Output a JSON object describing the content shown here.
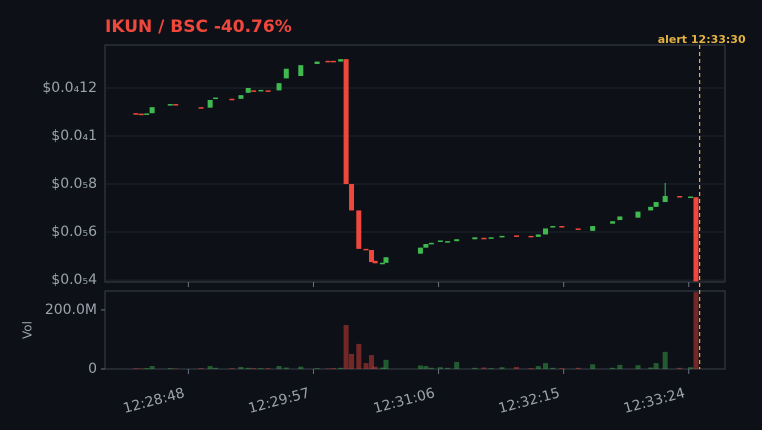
{
  "chart_data": {
    "type": "candlestick",
    "title": "IKUN / BSC  -40.76%",
    "up_color": "#3fb950",
    "down_color": "#f0473c",
    "x": [
      "12:28:19",
      "12:28:22",
      "12:28:25",
      "12:28:28",
      "12:28:38",
      "12:28:41",
      "12:28:55",
      "12:29:00",
      "12:29:03",
      "12:29:12",
      "12:29:17",
      "12:29:21",
      "12:29:24",
      "12:29:28",
      "12:29:32",
      "12:29:38",
      "12:29:42",
      "12:29:50",
      "12:29:59",
      "12:30:05",
      "12:30:08",
      "12:30:12",
      "12:30:15",
      "12:30:18",
      "12:30:22",
      "12:30:26",
      "12:30:29",
      "12:30:31",
      "12:30:35",
      "12:30:37",
      "12:30:56",
      "12:30:59",
      "12:31:02",
      "12:31:07",
      "12:31:11",
      "12:31:16",
      "12:31:26",
      "12:31:31",
      "12:31:35",
      "12:31:41",
      "12:31:49",
      "12:31:57",
      "12:32:01",
      "12:32:05",
      "12:32:09",
      "12:32:14",
      "12:32:23",
      "12:32:31",
      "12:32:42",
      "12:32:46",
      "12:32:56",
      "12:33:03",
      "12:33:06",
      "12:33:11",
      "12:33:19",
      "12:33:25",
      "12:33:28"
    ],
    "open": [
      1.095e-05,
      1.093e-05,
      1.092e-05,
      1.095e-05,
      1.13e-05,
      1.133e-05,
      1.12e-05,
      1.118e-05,
      1.155e-05,
      1.155e-05,
      1.155e-05,
      1.18e-05,
      1.19e-05,
      1.19e-05,
      1.19e-05,
      1.19e-05,
      1.24e-05,
      1.25e-05,
      1.3e-05,
      1.313e-05,
      1.313e-05,
      1.31e-05,
      1.32e-05,
      8e-06,
      6.9e-06,
      5.3e-06,
      5.25e-06,
      4.8e-06,
      4.7e-06,
      4.72e-06,
      5.1e-06,
      5.35e-06,
      5.5e-06,
      5.6e-06,
      5.6e-06,
      5.62e-06,
      5.7e-06,
      5.76e-06,
      5.74e-06,
      5.78e-06,
      5.86e-06,
      5.84e-06,
      5.8e-06,
      5.9e-06,
      6.2e-06,
      6.25e-06,
      6.15e-06,
      6.05e-06,
      6.35e-06,
      6.5e-06,
      6.6e-06,
      6.9e-06,
      7.05e-06,
      7.25e-06,
      7.5e-06,
      7.45e-06,
      7.45e-06
    ],
    "high": [
      1.095e-05,
      1.093e-05,
      1.094e-05,
      1.12e-05,
      1.133e-05,
      1.133e-05,
      1.12e-05,
      1.15e-05,
      1.16e-05,
      1.155e-05,
      1.17e-05,
      1.2e-05,
      1.19e-05,
      1.192e-05,
      1.19e-05,
      1.22e-05,
      1.28e-05,
      1.295e-05,
      1.31e-05,
      1.313e-05,
      1.313e-05,
      1.32e-05,
      1.32e-05,
      8e-06,
      6.9e-06,
      5.3e-06,
      5.25e-06,
      4.8e-06,
      4.72e-06,
      4.95e-06,
      5.35e-06,
      5.5e-06,
      5.55e-06,
      5.65e-06,
      5.62e-06,
      5.7e-06,
      5.78e-06,
      5.76e-06,
      5.78e-06,
      5.84e-06,
      5.86e-06,
      5.84e-06,
      5.9e-06,
      6.15e-06,
      6.25e-06,
      6.25e-06,
      6.15e-06,
      6.25e-06,
      6.45e-06,
      6.65e-06,
      6.85e-06,
      7.05e-06,
      7.25e-06,
      8.05e-06,
      7.5e-06,
      7.48e-06,
      7.45e-06
    ],
    "low": [
      1.093e-05,
      1.09e-05,
      1.092e-05,
      1.095e-05,
      1.13e-05,
      1.131e-05,
      1.118e-05,
      1.118e-05,
      1.155e-05,
      1.153e-05,
      1.155e-05,
      1.18e-05,
      1.188e-05,
      1.19e-05,
      1.188e-05,
      1.19e-05,
      1.24e-05,
      1.25e-05,
      1.3e-05,
      1.312e-05,
      1.31e-05,
      1.31e-05,
      8e-06,
      6.9e-06,
      5.3e-06,
      5.25e-06,
      4.75e-06,
      4.7e-06,
      4.7e-06,
      4.72e-06,
      5.1e-06,
      5.35e-06,
      5.5e-06,
      5.6e-06,
      5.6e-06,
      5.62e-06,
      5.7e-06,
      5.74e-06,
      5.74e-06,
      5.78e-06,
      5.84e-06,
      5.8e-06,
      5.8e-06,
      5.9e-06,
      6.2e-06,
      6.2e-06,
      6.1e-06,
      6.05e-06,
      6.35e-06,
      6.5e-06,
      6.6e-06,
      6.9e-06,
      7.05e-06,
      7.25e-06,
      7.45e-06,
      7.45e-06,
      3.95e-06
    ],
    "close": [
      1.093e-05,
      1.09e-05,
      1.094e-05,
      1.12e-05,
      1.133e-05,
      1.131e-05,
      1.118e-05,
      1.15e-05,
      1.16e-05,
      1.153e-05,
      1.17e-05,
      1.2e-05,
      1.188e-05,
      1.192e-05,
      1.188e-05,
      1.22e-05,
      1.28e-05,
      1.295e-05,
      1.31e-05,
      1.312e-05,
      1.31e-05,
      1.32e-05,
      8e-06,
      6.9e-06,
      5.3e-06,
      5.25e-06,
      4.75e-06,
      4.7e-06,
      4.72e-06,
      4.95e-06,
      5.35e-06,
      5.5e-06,
      5.55e-06,
      5.65e-06,
      5.62e-06,
      5.7e-06,
      5.78e-06,
      5.74e-06,
      5.78e-06,
      5.84e-06,
      5.84e-06,
      5.8e-06,
      5.9e-06,
      6.15e-06,
      6.25e-06,
      6.2e-06,
      6.1e-06,
      6.25e-06,
      6.45e-06,
      6.65e-06,
      6.85e-06,
      7.05e-06,
      7.25e-06,
      7.5e-06,
      7.45e-06,
      7.48e-06,
      3.95e-06
    ],
    "volume": [
      3000000,
      2000000,
      3000000,
      10000000,
      3000000,
      2000000,
      3000000,
      10000000,
      4000000,
      3000000,
      7000000,
      4000000,
      3000000,
      3000000,
      3000000,
      10000000,
      5000000,
      8000000,
      3000000,
      2000000,
      3000000,
      4000000,
      149000000,
      51000000,
      85000000,
      20000000,
      47000000,
      8000000,
      5000000,
      31000000,
      12000000,
      10000000,
      4000000,
      6000000,
      4000000,
      24000000,
      4000000,
      5000000,
      3000000,
      6000000,
      7000000,
      3000000,
      10000000,
      20000000,
      4000000,
      3000000,
      4000000,
      16000000,
      4000000,
      14000000,
      13000000,
      5000000,
      20000000,
      58000000,
      4000000,
      6000000,
      260000000
    ],
    "xlim": [
      "12:28:02",
      "12:33:44"
    ],
    "xticks": [
      "12:28:48",
      "12:29:57",
      "12:31:06",
      "12:32:15",
      "12:33:24"
    ],
    "ylim": [
      3.92e-06,
      1.379e-05
    ],
    "yticks": [
      {
        "value": 4e-06,
        "label": "$0.0₅4"
      },
      {
        "value": 6e-06,
        "label": "$0.0₅6"
      },
      {
        "value": 8e-06,
        "label": "$0.0₅8"
      },
      {
        "value": 1e-05,
        "label": "$0.0₄1"
      },
      {
        "value": 1.2e-05,
        "label": "$0.0₄12"
      }
    ],
    "volume_axis_label": "Vol",
    "vol_ylim": [
      0,
      264000000
    ],
    "vol_yticks": [
      0,
      {
        "value": 200000000,
        "label": "200.0M"
      }
    ],
    "grid": true,
    "alert": {
      "time": "12:33:30",
      "label": "alert 12:33:30",
      "color": "#e3b341"
    }
  }
}
